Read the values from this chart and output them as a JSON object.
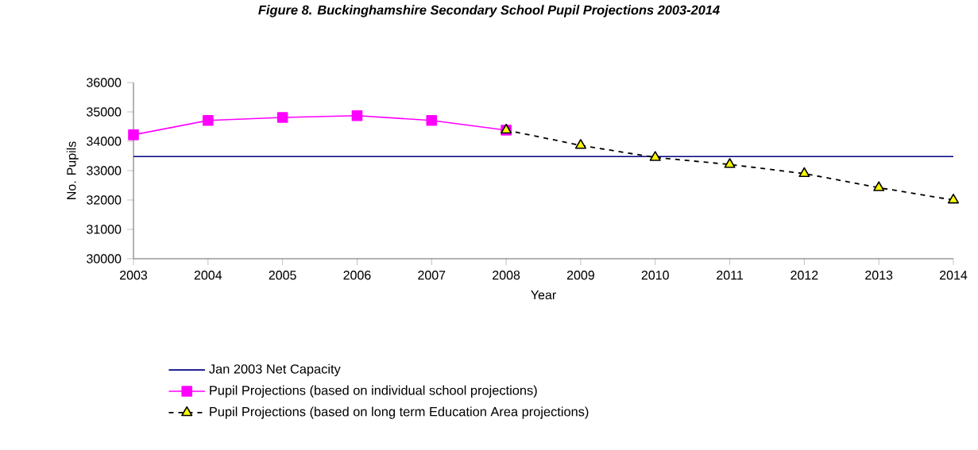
{
  "chart_data": {
    "type": "line",
    "title": "Figure 8. Buckinghamshire Secondary School Pupil Projections 2003-2014",
    "xlabel": "Year",
    "ylabel": "No. Pupils",
    "xlim": [
      2003,
      2014
    ],
    "xticks": [
      2003,
      2004,
      2005,
      2006,
      2007,
      2008,
      2009,
      2010,
      2011,
      2012,
      2013,
      2014
    ],
    "ylim": [
      30000,
      36000
    ],
    "yticks": [
      30000,
      31000,
      32000,
      33000,
      34000,
      35000,
      36000
    ],
    "ref_lines": [
      {
        "axis": "y",
        "value": 33480,
        "label": "Jan 2003 Net Capacity",
        "color": "#000080",
        "line_style": "solid"
      }
    ],
    "series": [
      {
        "name": "Pupil Projections (based on individual school projections)",
        "color": "#ff00ff",
        "marker": "square",
        "line_style": "solid",
        "x": [
          2003,
          2004,
          2005,
          2006,
          2007,
          2008
        ],
        "values": [
          34220,
          34710,
          34810,
          34870,
          34710,
          34380
        ]
      },
      {
        "name": "Pupil Projections (based on long term Education Area projections)",
        "color": "#ffff00",
        "marker": "triangle",
        "line_style": "dashed",
        "x": [
          2008,
          2009,
          2010,
          2011,
          2012,
          2013,
          2014
        ],
        "values": [
          34380,
          33860,
          33450,
          33210,
          32900,
          32420,
          32000
        ]
      }
    ],
    "legend": "bottom",
    "grid": false
  }
}
